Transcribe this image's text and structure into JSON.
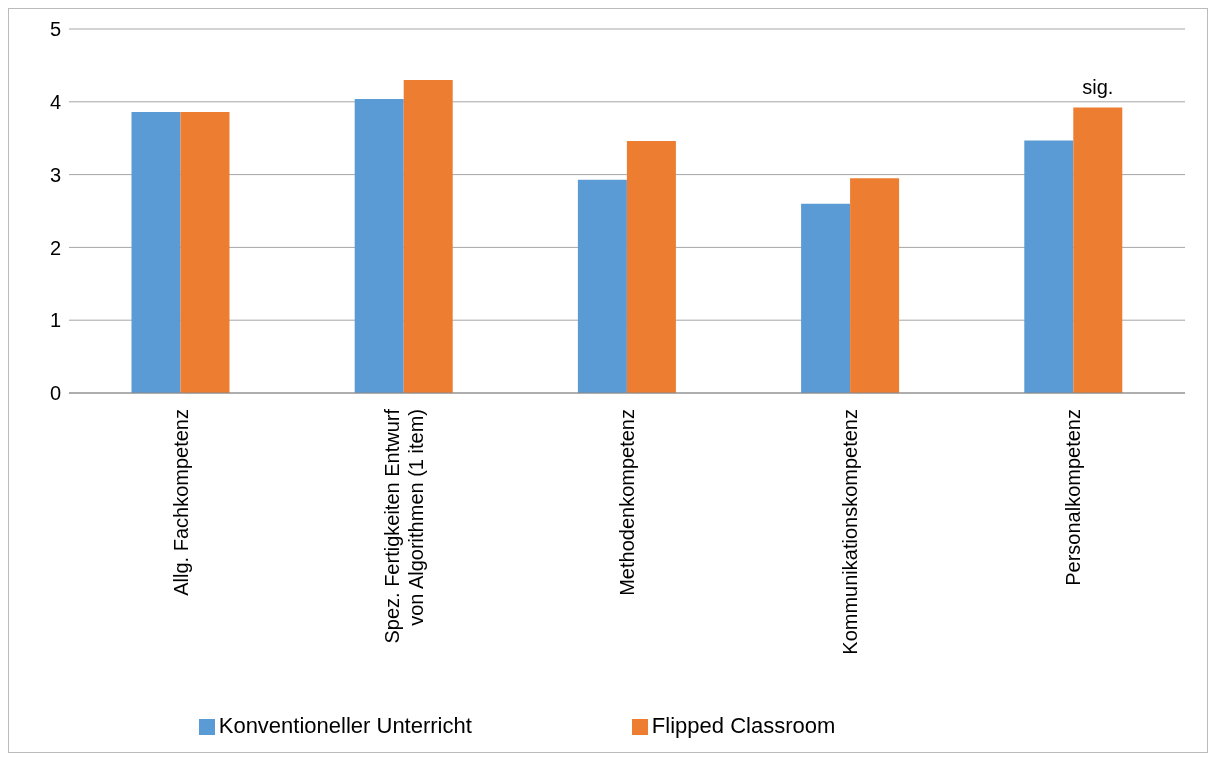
{
  "chart_data": {
    "type": "bar",
    "categories": [
      "Allg. Fachkompetenz",
      "Spez. Fertigkeiten Entwurf von Algorithmen (1 item)",
      "Methodenkompetenz",
      "Kommunikationskompetenz",
      "Personalkompetenz"
    ],
    "series": [
      {
        "name": "Konventioneller Unterricht",
        "color": "#5b9bd5",
        "values": [
          3.86,
          4.04,
          2.93,
          2.6,
          3.47
        ]
      },
      {
        "name": "Flipped Classroom",
        "color": "#ed7d31",
        "values": [
          3.86,
          4.3,
          3.46,
          2.95,
          3.92
        ]
      }
    ],
    "ylim": [
      0,
      5
    ],
    "yticks": [
      0,
      1,
      2,
      3,
      4,
      5
    ],
    "grid": "y",
    "legend": "bottom",
    "annotations": [
      {
        "text": "sig.",
        "x": "Personalkompetenz",
        "y": 3.92
      }
    ]
  }
}
